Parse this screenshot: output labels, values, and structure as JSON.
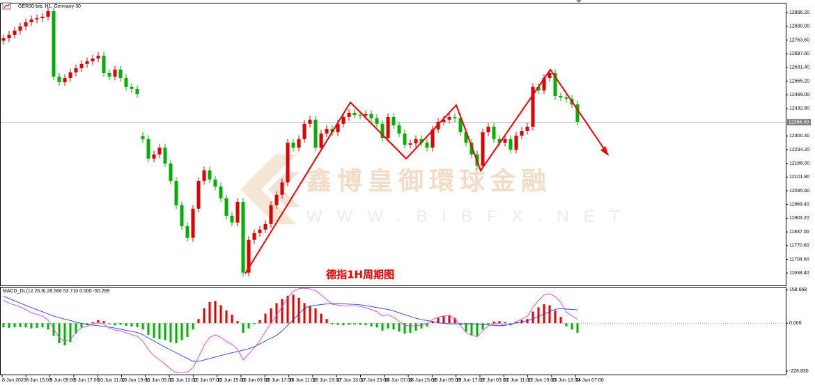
{
  "chart_data": {
    "type": "candlestick",
    "title": "GER30-bib, H1, Germany 30",
    "annotation": "德指1H周期图",
    "watermark": {
      "name": "鑫博皇御環球金融",
      "url": "WWW.BIBFX.NET"
    },
    "up_color": "#e00000",
    "down_color": "#00b000",
    "time_labels": [
      "8 Jun 2020",
      "8 Jun 15:00",
      "9 Jun 09:00",
      "9 Jun 17:00",
      "10 Jun 11:00",
      "10 Jun 19:00",
      "11 Jun 05:00",
      "11 Jun 13:00",
      "12 Jun 07:00",
      "12 Jun 15:00",
      "15 Jun 03:00",
      "15 Jun 17:00",
      "16 Jun 11:00",
      "16 Jun 19:00",
      "17 Jun 13:00",
      "17 Jun 23:00",
      "18 Jun 07:00",
      "18 Jun 15:00",
      "19 Jun 09:00",
      "19 Jun 17:00",
      "22 Jun 03:00",
      "22 Jun 11:00",
      "22 Jun 19:00",
      "23 Jun 13:00",
      "24 Jun 07:00"
    ],
    "open": [
      12760,
      12772,
      12789,
      12809,
      12829,
      12849,
      12863,
      12869,
      12876,
      12903,
      12587,
      12560,
      12580,
      12607,
      12627,
      12648,
      12661,
      12674,
      12688,
      12604,
      12587,
      12621,
      12580,
      12537,
      12527,
      12300,
      12285,
      12191,
      12211,
      12244,
      12167,
      12083,
      11966,
      11865,
      11808,
      11949,
      12083,
      12134,
      12090,
      12056,
      11999,
      11915,
      11882,
      11982,
      11640,
      11798,
      11831,
      11848,
      11875,
      11966,
      12016,
      12076,
      12268,
      12244,
      12285,
      12359,
      12379,
      12244,
      12312,
      12335,
      12318,
      12359,
      12392,
      12412,
      12402,
      12399,
      12406,
      12386,
      12359,
      12291,
      12392,
      12352,
      12312,
      12258,
      12265,
      12285,
      12268,
      12244,
      12332,
      12369,
      12379,
      12392,
      12386,
      12318,
      12268,
      12211,
      12157,
      12318,
      12345,
      12285,
      12268,
      12285,
      12234,
      12302,
      12325,
      12345,
      12537,
      12520,
      12580,
      12604,
      12493,
      12486,
      12480,
      12453
    ],
    "high": [
      12790,
      12807,
      12827,
      12847,
      12867,
      12881,
      12887,
      12894,
      12921,
      12921,
      12605,
      12598,
      12625,
      12645,
      12666,
      12679,
      12692,
      12706,
      12706,
      12622,
      12639,
      12639,
      12598,
      12555,
      12545,
      12318,
      12303,
      12229,
      12262,
      12262,
      12185,
      12101,
      11984,
      11883,
      11967,
      12101,
      12152,
      12152,
      12108,
      12074,
      12017,
      11933,
      12000,
      12000,
      11816,
      11849,
      11866,
      11893,
      11984,
      12034,
      12094,
      12286,
      12286,
      12303,
      12377,
      12397,
      12397,
      12330,
      12353,
      12353,
      12377,
      12410,
      12430,
      12430,
      12420,
      12424,
      12424,
      12404,
      12377,
      12410,
      12410,
      12370,
      12330,
      12283,
      12303,
      12303,
      12286,
      12350,
      12387,
      12397,
      12410,
      12410,
      12404,
      12336,
      12286,
      12229,
      12336,
      12363,
      12363,
      12303,
      12303,
      12303,
      12320,
      12343,
      12363,
      12555,
      12555,
      12598,
      12622,
      12622,
      12511,
      12504,
      12498,
      12471
    ],
    "low": [
      12742,
      12754,
      12771,
      12791,
      12811,
      12831,
      12845,
      12851,
      12858,
      12569,
      12542,
      12542,
      12562,
      12589,
      12609,
      12630,
      12643,
      12656,
      12586,
      12569,
      12569,
      12562,
      12519,
      12509,
      12485,
      12267,
      12173,
      12173,
      12193,
      12149,
      12065,
      11948,
      11847,
      11790,
      11790,
      11931,
      12065,
      12072,
      12038,
      11981,
      11897,
      11864,
      11864,
      11622,
      11622,
      11780,
      11813,
      11830,
      11857,
      11948,
      11998,
      12058,
      12226,
      12226,
      12267,
      12341,
      12226,
      12226,
      12294,
      12300,
      12300,
      12341,
      12374,
      12384,
      12381,
      12381,
      12368,
      12341,
      12273,
      12273,
      12334,
      12294,
      12240,
      12240,
      12247,
      12250,
      12226,
      12226,
      12314,
      12351,
      12361,
      12368,
      12300,
      12250,
      12193,
      12139,
      12139,
      12300,
      12267,
      12250,
      12250,
      12216,
      12216,
      12284,
      12307,
      12327,
      12502,
      12502,
      12562,
      12475,
      12468,
      12462,
      12435,
      12351
    ],
    "close": [
      12772,
      12789,
      12809,
      12829,
      12849,
      12863,
      12869,
      12876,
      12903,
      12587,
      12560,
      12580,
      12607,
      12627,
      12648,
      12661,
      12674,
      12688,
      12604,
      12587,
      12621,
      12580,
      12537,
      12527,
      12503,
      12285,
      12191,
      12211,
      12244,
      12167,
      12083,
      11966,
      11865,
      11808,
      11949,
      12083,
      12134,
      12090,
      12056,
      11999,
      11915,
      11882,
      11982,
      11640,
      11798,
      11831,
      11848,
      11875,
      11966,
      12016,
      12076,
      12268,
      12244,
      12285,
      12359,
      12379,
      12244,
      12312,
      12335,
      12318,
      12359,
      12392,
      12412,
      12402,
      12399,
      12406,
      12386,
      12359,
      12291,
      12392,
      12352,
      12312,
      12258,
      12265,
      12285,
      12268,
      12244,
      12332,
      12369,
      12379,
      12392,
      12386,
      12318,
      12268,
      12211,
      12157,
      12318,
      12345,
      12285,
      12268,
      12285,
      12234,
      12302,
      12325,
      12345,
      12537,
      12520,
      12580,
      12604,
      12493,
      12486,
      12480,
      12453,
      12369
    ],
    "ylim": [
      11585,
      12940
    ],
    "yticks": [
      {
        "value": 12896.2,
        "label": "12896.20"
      },
      {
        "value": 12830,
        "label": "12830.00"
      },
      {
        "value": 12763.6,
        "label": "12763.60"
      },
      {
        "value": 12697.6,
        "label": "12697.60"
      },
      {
        "value": 12631.4,
        "label": "12631.40"
      },
      {
        "value": 12565.2,
        "label": "12565.20"
      },
      {
        "value": 12499,
        "label": "12499.00"
      },
      {
        "value": 12432.8,
        "label": "12432.80"
      },
      {
        "value": 12300.4,
        "label": "12300.40"
      },
      {
        "value": 12234.2,
        "label": "12234.20"
      },
      {
        "value": 12168,
        "label": "12168.00"
      },
      {
        "value": 12101.8,
        "label": "12101.80"
      },
      {
        "value": 12035.6,
        "label": "12035.60"
      },
      {
        "value": 11969.4,
        "label": "11969.40"
      },
      {
        "value": 11903.2,
        "label": "11903.20"
      },
      {
        "value": 11837,
        "label": "11837.00"
      },
      {
        "value": 11770.8,
        "label": "11770.80"
      },
      {
        "value": 11704.6,
        "label": "11704.60"
      },
      {
        "value": 11638.4,
        "label": "11638.40"
      }
    ],
    "last_price": {
      "value": 12366.4,
      "label": "12366.40"
    },
    "indicator": {
      "type": "macd",
      "label": "MACD_DL(12,26,9) 28.566 53.710 0.000 -50.289",
      "macd_color": "#e040e0",
      "signal_color": "#2040e0",
      "histogram": [
        -20,
        -22,
        -20,
        -18,
        -20,
        -25,
        -22,
        -20,
        -30,
        -60,
        -95,
        -105,
        -90,
        -50,
        -20,
        -10,
        5,
        15,
        10,
        -5,
        -10,
        -8,
        -12,
        -15,
        -18,
        -30,
        -55,
        -70,
        -75,
        -80,
        -90,
        -95,
        -80,
        -65,
        -30,
        20,
        70,
        100,
        105,
        85,
        60,
        40,
        10,
        -45,
        -25,
        -5,
        15,
        45,
        70,
        95,
        115,
        130,
        135,
        120,
        95,
        80,
        70,
        45,
        20,
        -5,
        -8,
        -10,
        -8,
        -6,
        -8,
        -10,
        -15,
        -20,
        -35,
        -25,
        -30,
        -40,
        -50,
        -45,
        -35,
        -25,
        -15,
        10,
        25,
        35,
        38,
        25,
        -10,
        -40,
        -55,
        -60,
        -30,
        -5,
        8,
        10,
        5,
        -5,
        5,
        15,
        20,
        55,
        75,
        90,
        85,
        60,
        30,
        -15,
        -30,
        -45
      ],
      "macd": [
        108,
        95,
        86,
        77,
        64,
        49,
        42,
        34,
        14,
        -26,
        -69,
        -86,
        -77,
        -44,
        -21,
        -15,
        -4,
        3,
        -5,
        -24,
        -33,
        -36,
        -46,
        -54,
        -62,
        -85,
        -125,
        -154,
        -174,
        -194,
        -217,
        -235,
        -234,
        -232,
        -210,
        -161,
        -104,
        -67,
        -55,
        -68,
        -86,
        -100,
        -124,
        -173,
        -146,
        -116,
        -83,
        -39,
        -1,
        37,
        79,
        120,
        152,
        163,
        165,
        162,
        155,
        133,
        111,
        89,
        86,
        82,
        82,
        83,
        79,
        73,
        64,
        54,
        34,
        40,
        28,
        9,
        -10,
        -13,
        -12,
        -8,
        -2,
        18,
        28,
        34,
        35,
        22,
        -13,
        -43,
        -58,
        -64,
        -36,
        -13,
        -2,
        -2,
        -5,
        -10,
        6,
        21,
        32,
        75,
        107,
        133,
        139,
        126,
        99,
        52,
        35,
        18
      ],
      "signal": [
        128,
        117,
        106,
        95,
        84,
        74,
        64,
        54,
        44,
        34,
        26,
        19,
        13,
        6,
        -1,
        -5,
        -9,
        -12,
        -15,
        -19,
        -23,
        -28,
        -34,
        -39,
        -44,
        -55,
        -70,
        -84,
        -99,
        -114,
        -127,
        -140,
        -154,
        -167,
        -180,
        -181,
        -174,
        -167,
        -160,
        -153,
        -146,
        -140,
        -134,
        -128,
        -121,
        -111,
        -98,
        -84,
        -71,
        -58,
        -36,
        -10,
        17,
        43,
        70,
        82,
        85,
        88,
        91,
        94,
        94,
        92,
        90,
        89,
        87,
        83,
        79,
        74,
        69,
        65,
        58,
        49,
        40,
        32,
        23,
        17,
        13,
        8,
        3,
        -1,
        -3,
        -3,
        -3,
        -3,
        -3,
        -4,
        -6,
        -8,
        -10,
        -12,
        -10,
        -5,
        1,
        6,
        12,
        20,
        32,
        43,
        54,
        66,
        69,
        67,
        65,
        63
      ],
      "ylim": [
        -243,
        172
      ],
      "yticks": [
        158.668,
        {
          "value": 0,
          "label": "0.000"
        },
        {
          "value": -226.83,
          "label": "-226.830"
        }
      ]
    }
  }
}
